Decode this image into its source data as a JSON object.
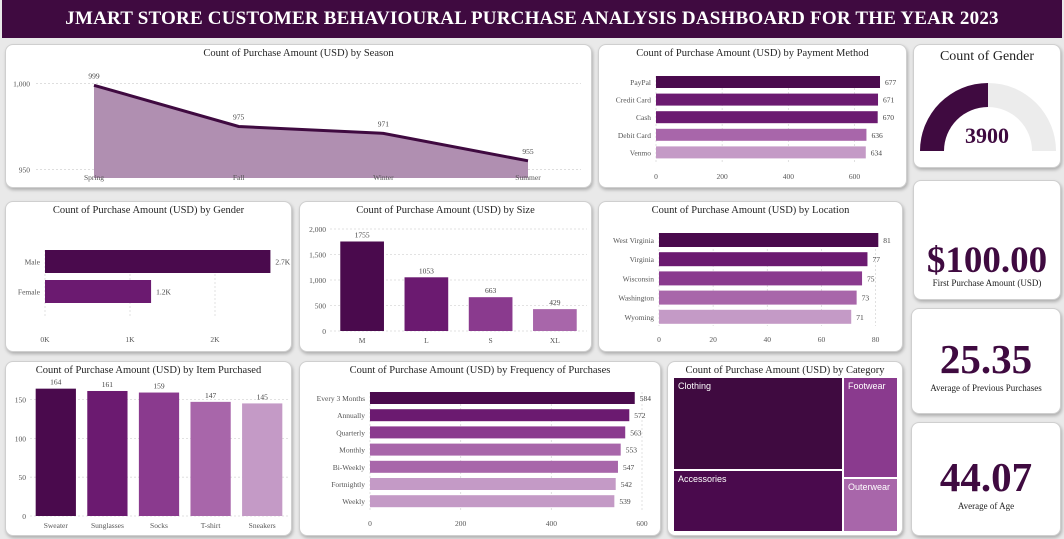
{
  "header": {
    "title": "JMART STORE CUSTOMER BEHAVIOURAL PURCHASE ANALYSIS DASHBOARD FOR THE YEAR 2023"
  },
  "colors": {
    "dark": "#3f0a40",
    "bar1": "#4a0a4d",
    "bar2": "#6b1a70",
    "bar3": "#8a3a8e",
    "bar4": "#a866aa",
    "bar5": "#c49ac6",
    "area": "#b08fb1"
  },
  "kpis": {
    "gender": {
      "title": "Count of Gender",
      "value": "3900",
      "fraction": 0.5
    },
    "first_purchase": {
      "value": "$100.00",
      "label": "First  Purchase Amount (USD)"
    },
    "prev_purchases": {
      "value": "25.35",
      "label": "Average of Previous Purchases"
    },
    "age": {
      "value": "44.07",
      "label": "Average of Age"
    }
  },
  "chart_data": [
    {
      "id": "season",
      "type": "area",
      "title": "Count of Purchase Amount (USD) by Season",
      "categories": [
        "Spring",
        "Fall",
        "Winter",
        "Summer"
      ],
      "values": [
        999,
        975,
        971,
        955
      ],
      "labels": [
        "999",
        "975",
        "971",
        "955"
      ],
      "yticks": [
        "1,000",
        "950"
      ],
      "ylim": [
        945,
        1005
      ]
    },
    {
      "id": "payment",
      "type": "bar",
      "orientation": "horizontal",
      "title": "Count of Purchase Amount (USD) by Payment Method",
      "categories": [
        "PayPal",
        "Credit Card",
        "Cash",
        "Debit Card",
        "Venmo"
      ],
      "values": [
        677,
        671,
        670,
        636,
        634
      ],
      "labels": [
        "677",
        "671",
        "670",
        "636",
        "634"
      ],
      "xticks": [
        "0",
        "200",
        "400",
        "600"
      ],
      "xlim": [
        0,
        680
      ]
    },
    {
      "id": "gender",
      "type": "bar",
      "orientation": "horizontal",
      "title": "Count of Purchase Amount (USD) by Gender",
      "categories": [
        "Male",
        "Female"
      ],
      "values": [
        2652,
        1248
      ],
      "labels": [
        "2.7K",
        "1.2K"
      ],
      "xticks": [
        "0K",
        "1K",
        "2K"
      ],
      "xlim": [
        0,
        2800
      ]
    },
    {
      "id": "size",
      "type": "bar",
      "orientation": "vertical",
      "title": "Count of Purchase Amount (USD) by Size",
      "categories": [
        "M",
        "L",
        "S",
        "XL"
      ],
      "values": [
        1755,
        1053,
        663,
        429
      ],
      "labels": [
        "1755",
        "1053",
        "663",
        "429"
      ],
      "yticks": [
        "2,000",
        "1,500",
        "1,000",
        "500",
        "0"
      ],
      "ylim": [
        0,
        2000
      ]
    },
    {
      "id": "location",
      "type": "bar",
      "orientation": "horizontal",
      "title": "Count of Purchase Amount (USD) by Location",
      "categories": [
        "West Virginia",
        "Virginia",
        "Wisconsin",
        "Washington",
        "Wyoming"
      ],
      "values": [
        81,
        77,
        75,
        73,
        71
      ],
      "labels": [
        "81",
        "77",
        "75",
        "73",
        "71"
      ],
      "xticks": [
        "0",
        "20",
        "40",
        "60",
        "80"
      ],
      "xlim": [
        0,
        82
      ]
    },
    {
      "id": "item",
      "type": "bar",
      "orientation": "vertical",
      "title": "Count of Purchase Amount (USD) by Item Purchased",
      "categories": [
        "Sweater",
        "Sunglasses",
        "Socks",
        "T-shirt",
        "Sneakers"
      ],
      "values": [
        164,
        161,
        159,
        147,
        145
      ],
      "labels": [
        "164",
        "161",
        "159",
        "147",
        "145"
      ],
      "yticks": [
        "150",
        "100",
        "50",
        "0"
      ],
      "ylim": [
        0,
        170
      ]
    },
    {
      "id": "frequency",
      "type": "bar",
      "orientation": "horizontal",
      "title": "Count of Purchase Amount (USD) by Frequency of Purchases",
      "categories": [
        "Every 3 Months",
        "Annually",
        "Quarterly",
        "Monthly",
        "Bi-Weekly",
        "Fortnightly",
        "Weekly"
      ],
      "values": [
        584,
        572,
        563,
        553,
        547,
        542,
        539
      ],
      "labels": [
        "584",
        "572",
        "563",
        "553",
        "547",
        "542",
        "539"
      ],
      "xticks": [
        "0",
        "200",
        "400",
        "600"
      ],
      "xlim": [
        0,
        600
      ]
    },
    {
      "id": "category",
      "type": "heatmap",
      "title": "Count of Purchase Amount (USD) by Category",
      "categories": [
        "Clothing",
        "Accessories",
        "Footwear",
        "Outerwear"
      ],
      "values": [
        1737,
        1240,
        599,
        324
      ]
    }
  ]
}
